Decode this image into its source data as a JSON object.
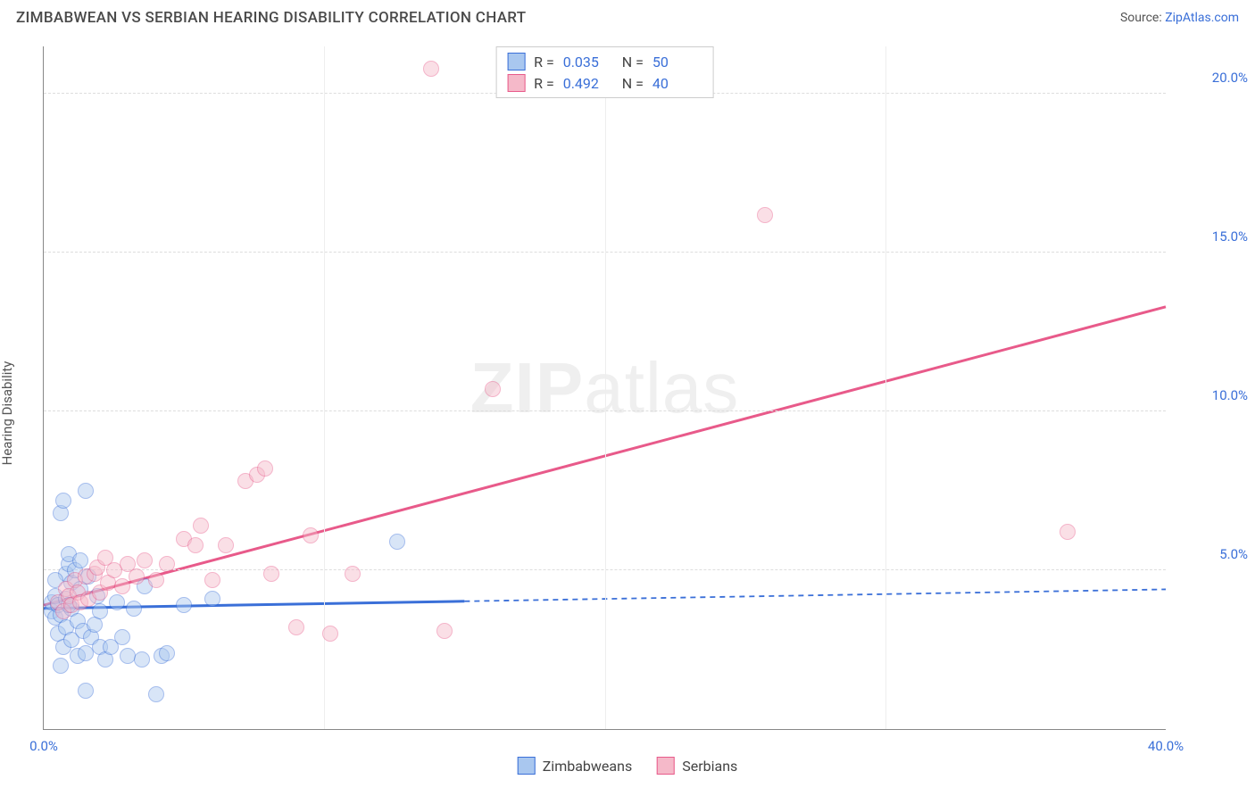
{
  "header": {
    "title": "ZIMBABWEAN VS SERBIAN HEARING DISABILITY CORRELATION CHART",
    "source_label": "Source: ",
    "source_name": "ZipAtlas.com"
  },
  "ylabel": "Hearing Disability",
  "watermark": {
    "bold": "ZIP",
    "rest": "atlas"
  },
  "chart": {
    "type": "scatter",
    "xlim": [
      0,
      40
    ],
    "ylim": [
      0,
      21.5
    ],
    "xticks": [
      {
        "v": 0,
        "label": "0.0%"
      },
      {
        "v": 40,
        "label": "40.0%"
      }
    ],
    "xgrid": [
      10,
      20,
      30
    ],
    "yticks": [
      {
        "v": 5,
        "label": "5.0%"
      },
      {
        "v": 10,
        "label": "10.0%"
      },
      {
        "v": 15,
        "label": "15.0%"
      },
      {
        "v": 20,
        "label": "20.0%"
      }
    ],
    "background_color": "#ffffff",
    "grid_color": "#dddddd",
    "axis_color": "#888888",
    "tick_label_color": "#3a6fd8",
    "marker_radius": 9,
    "marker_opacity": 0.45,
    "marker_stroke_width": 1.2,
    "series": [
      {
        "key": "zimbabweans",
        "label": "Zimbabweans",
        "fill": "#a9c7ef",
        "stroke": "#3a6fd8",
        "R": "0.035",
        "N": "50",
        "trend": {
          "x1": 0,
          "y1": 3.8,
          "x2": 40,
          "y2": 4.4,
          "solid_until_x": 15,
          "color": "#3a6fd8",
          "stroke_width": 3
        },
        "points": [
          [
            0.3,
            3.7
          ],
          [
            0.3,
            4.0
          ],
          [
            0.4,
            3.5
          ],
          [
            0.4,
            4.2
          ],
          [
            0.5,
            3.0
          ],
          [
            0.5,
            3.9
          ],
          [
            0.6,
            3.6
          ],
          [
            0.6,
            6.8
          ],
          [
            0.7,
            7.2
          ],
          [
            0.7,
            2.6
          ],
          [
            0.8,
            4.1
          ],
          [
            0.8,
            4.9
          ],
          [
            0.8,
            3.2
          ],
          [
            0.9,
            5.2
          ],
          [
            0.9,
            5.5
          ],
          [
            1.0,
            3.8
          ],
          [
            1.0,
            2.8
          ],
          [
            1.0,
            4.6
          ],
          [
            1.1,
            5.0
          ],
          [
            1.2,
            2.3
          ],
          [
            1.2,
            3.4
          ],
          [
            1.3,
            4.4
          ],
          [
            1.3,
            5.3
          ],
          [
            1.4,
            3.1
          ],
          [
            1.5,
            2.4
          ],
          [
            1.5,
            7.5
          ],
          [
            1.6,
            4.8
          ],
          [
            1.7,
            2.9
          ],
          [
            1.8,
            3.3
          ],
          [
            1.9,
            4.2
          ],
          [
            2.0,
            2.6
          ],
          [
            2.0,
            3.7
          ],
          [
            2.2,
            2.2
          ],
          [
            2.4,
            2.6
          ],
          [
            2.6,
            4.0
          ],
          [
            2.8,
            2.9
          ],
          [
            3.0,
            2.3
          ],
          [
            3.2,
            3.8
          ],
          [
            3.5,
            2.2
          ],
          [
            3.6,
            4.5
          ],
          [
            4.0,
            1.1
          ],
          [
            4.2,
            2.3
          ],
          [
            4.4,
            2.4
          ],
          [
            5.0,
            3.9
          ],
          [
            6.0,
            4.1
          ],
          [
            12.6,
            5.9
          ],
          [
            1.5,
            1.2
          ],
          [
            0.6,
            2.0
          ],
          [
            0.4,
            4.7
          ],
          [
            0.9,
            3.9
          ]
        ]
      },
      {
        "key": "serbians",
        "label": "Serbians",
        "fill": "#f5b9c9",
        "stroke": "#e85a8a",
        "R": "0.492",
        "N": "40",
        "trend": {
          "x1": 0,
          "y1": 3.9,
          "x2": 40,
          "y2": 13.3,
          "solid_until_x": 40,
          "color": "#e85a8a",
          "stroke_width": 3
        },
        "points": [
          [
            0.5,
            4.0
          ],
          [
            0.7,
            3.7
          ],
          [
            0.8,
            4.4
          ],
          [
            0.9,
            4.2
          ],
          [
            1.0,
            3.9
          ],
          [
            1.1,
            4.7
          ],
          [
            1.2,
            4.3
          ],
          [
            1.3,
            4.0
          ],
          [
            1.5,
            4.8
          ],
          [
            1.6,
            4.1
          ],
          [
            1.8,
            4.9
          ],
          [
            1.9,
            5.1
          ],
          [
            2.0,
            4.3
          ],
          [
            2.2,
            5.4
          ],
          [
            2.3,
            4.6
          ],
          [
            2.5,
            5.0
          ],
          [
            2.8,
            4.5
          ],
          [
            3.0,
            5.2
          ],
          [
            3.3,
            4.8
          ],
          [
            3.6,
            5.3
          ],
          [
            4.0,
            4.7
          ],
          [
            4.4,
            5.2
          ],
          [
            5.0,
            6.0
          ],
          [
            5.4,
            5.8
          ],
          [
            5.6,
            6.4
          ],
          [
            6.0,
            4.7
          ],
          [
            6.5,
            5.8
          ],
          [
            7.2,
            7.8
          ],
          [
            7.6,
            8.0
          ],
          [
            7.9,
            8.2
          ],
          [
            8.1,
            4.9
          ],
          [
            9.0,
            3.2
          ],
          [
            9.5,
            6.1
          ],
          [
            10.2,
            3.0
          ],
          [
            11.0,
            4.9
          ],
          [
            13.8,
            20.8
          ],
          [
            14.3,
            3.1
          ],
          [
            16.0,
            10.7
          ],
          [
            25.7,
            16.2
          ],
          [
            36.5,
            6.2
          ]
        ]
      }
    ]
  },
  "legend_top": {
    "r_label": "R =",
    "n_label": "N ="
  }
}
